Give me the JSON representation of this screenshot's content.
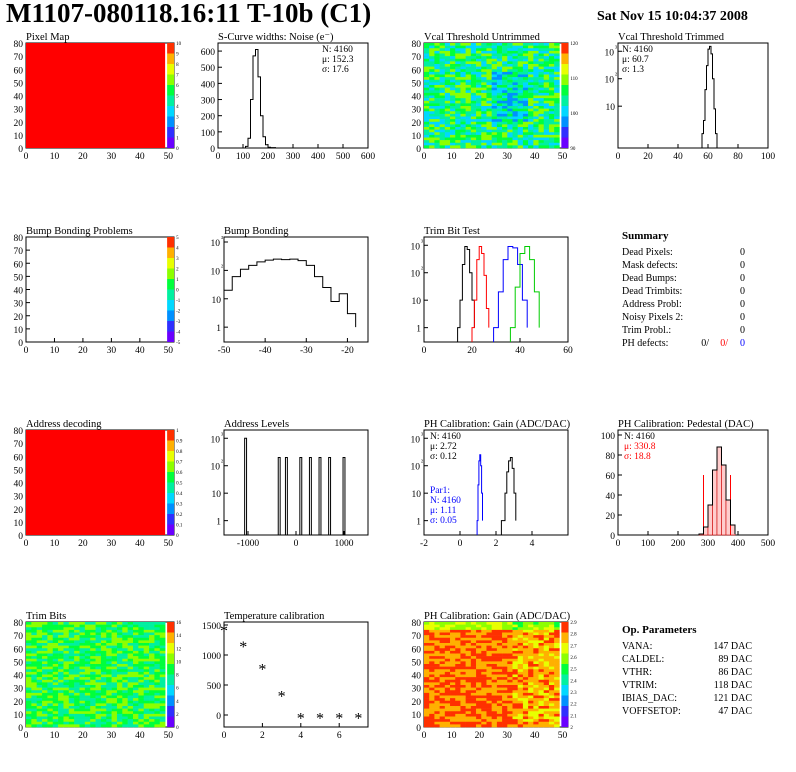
{
  "page": {
    "title": "M1107-080118.16:11 T-10b (C1)",
    "date": "Sat Nov 15 10:04:37 2008"
  },
  "colors": {
    "red": "#ff0000",
    "blue": "#0000ff",
    "green": "#00cc00",
    "black": "#000000",
    "palette": [
      "#6a00ff",
      "#2f2fff",
      "#0090ff",
      "#00d8ff",
      "#00f0a0",
      "#00ff3c",
      "#8cff00",
      "#e8ff00",
      "#ffb000",
      "#ff3000"
    ]
  },
  "summary": {
    "title": "Summary",
    "rows": [
      {
        "label": "Dead Pixels:",
        "value": "0"
      },
      {
        "label": "Mask defects:",
        "value": "0"
      },
      {
        "label": "Dead Bumps:",
        "value": "0"
      },
      {
        "label": "Dead Trimbits:",
        "value": "0"
      },
      {
        "label": "Address Probl:",
        "value": "0"
      },
      {
        "label": "Noisy Pixels 2:",
        "value": "0"
      },
      {
        "label": "Trim Probl.:",
        "value": "0"
      }
    ],
    "ph": {
      "label": "PH defects:",
      "v1": "0/",
      "v2": "0/",
      "v3": "0"
    }
  },
  "op_params": {
    "title": "Op. Parameters",
    "rows": [
      {
        "label": "VANA:",
        "value": "147 DAC"
      },
      {
        "label": "CALDEL:",
        "value": "89 DAC"
      },
      {
        "label": "VTHR:",
        "value": "86 DAC"
      },
      {
        "label": "VTRIM:",
        "value": "118 DAC"
      },
      {
        "label": "IBIAS_DAC:",
        "value": "121 DAC"
      },
      {
        "label": "VOFFSETOP:",
        "value": "47 DAC"
      }
    ]
  },
  "chart_data": [
    {
      "id": "pixel_map",
      "type": "heatmap",
      "title": "Pixel Map",
      "xlim": [
        0,
        52
      ],
      "ylim": [
        0,
        80
      ],
      "xticks": [
        "0",
        "10",
        "20",
        "30",
        "40",
        "50"
      ],
      "yticks": [
        "0",
        "10",
        "20",
        "30",
        "40",
        "50",
        "60",
        "70",
        "80"
      ],
      "fill": "uniform",
      "fill_color": "#ff0000",
      "zscale": [
        "0",
        "1",
        "2",
        "3",
        "4",
        "5",
        "6",
        "7",
        "8",
        "9",
        "10"
      ]
    },
    {
      "id": "scurve",
      "type": "line",
      "title": "S-Curve widths: Noise (e⁻)",
      "xlim": [
        0,
        600
      ],
      "ylim": [
        0,
        650
      ],
      "xticks": [
        "0",
        "100",
        "200",
        "300",
        "400",
        "500",
        "600"
      ],
      "yticks": [
        "0",
        "100",
        "200",
        "300",
        "400",
        "500",
        "600"
      ],
      "stats": [
        "N: 4160",
        "μ: 152.3",
        "σ: 17.6"
      ],
      "x": [
        100,
        110,
        120,
        130,
        140,
        150,
        160,
        170,
        180,
        190,
        200,
        210,
        230
      ],
      "y": [
        0,
        10,
        60,
        300,
        570,
        610,
        440,
        200,
        70,
        20,
        5,
        2,
        0
      ]
    },
    {
      "id": "vcal_untrimmed",
      "type": "heatmap",
      "title": "Vcal Threshold Untrimmed",
      "xlim": [
        0,
        52
      ],
      "ylim": [
        0,
        80
      ],
      "xticks": [
        "0",
        "10",
        "20",
        "30",
        "40",
        "50"
      ],
      "yticks": [
        "0",
        "10",
        "20",
        "30",
        "40",
        "50",
        "60",
        "70",
        "80"
      ],
      "fill": "noise",
      "zscale": [
        "90",
        "100",
        "110",
        "120"
      ]
    },
    {
      "id": "vcal_trimmed",
      "type": "line",
      "title": "Vcal Threshold Trimmed",
      "xlim": [
        0,
        100
      ],
      "ylim_log": [
        0.3,
        2000
      ],
      "log": true,
      "xticks": [
        "0",
        "20",
        "40",
        "60",
        "80",
        "100"
      ],
      "yticks": [
        "10",
        "10²",
        "10³"
      ],
      "stats": [
        "N: 4160",
        "μ: 60.7",
        "σ:  1.3"
      ],
      "x": [
        56,
        57,
        58,
        59,
        60,
        61,
        62,
        63,
        64,
        65,
        66
      ],
      "y": [
        1,
        3,
        40,
        300,
        1200,
        1500,
        800,
        100,
        8,
        1,
        0.3
      ]
    },
    {
      "id": "bump_problems",
      "type": "heatmap",
      "title": "Bump Bonding Problems",
      "xlim": [
        0,
        52
      ],
      "ylim": [
        0,
        80
      ],
      "xticks": [
        "0",
        "10",
        "20",
        "30",
        "40",
        "50"
      ],
      "yticks": [
        "0",
        "10",
        "20",
        "30",
        "40",
        "50",
        "60",
        "70",
        "80"
      ],
      "fill": "empty",
      "zscale": [
        "-5",
        "-4",
        "-3",
        "-2",
        "-1",
        "0",
        "1",
        "2",
        "3",
        "4",
        "5"
      ]
    },
    {
      "id": "bump_bonding",
      "type": "line",
      "title": "Bump Bonding",
      "xlim": [
        -50,
        -15
      ],
      "ylim_log": [
        0.3,
        1500
      ],
      "log": true,
      "xticks": [
        "-50",
        "-40",
        "-30",
        "-20"
      ],
      "yticks": [
        "1",
        "10",
        "10²",
        "10³"
      ],
      "x": [
        -50,
        -48,
        -46,
        -44,
        -42,
        -40,
        -38,
        -36,
        -34,
        -32,
        -30,
        -28,
        -26,
        -24,
        -22,
        -20,
        -18
      ],
      "y": [
        20,
        60,
        110,
        150,
        200,
        230,
        250,
        240,
        250,
        220,
        150,
        60,
        25,
        8,
        15,
        3,
        1
      ]
    },
    {
      "id": "trim_bit",
      "type": "line",
      "title": "Trim Bit Test",
      "xlim": [
        0,
        60
      ],
      "ylim_log": [
        0.3,
        2000
      ],
      "log": true,
      "xticks": [
        "0",
        "20",
        "40",
        "60"
      ],
      "yticks": [
        "1",
        "10",
        "10²",
        "10³"
      ],
      "series": [
        {
          "color": "black",
          "x": [
            14,
            15,
            16,
            17,
            18,
            19,
            20,
            21
          ],
          "y": [
            1,
            10,
            200,
            900,
            700,
            100,
            10,
            1
          ]
        },
        {
          "color": "red",
          "x": [
            20,
            21,
            22,
            23,
            24,
            25,
            26,
            27
          ],
          "y": [
            1,
            10,
            300,
            900,
            500,
            80,
            5,
            1
          ]
        },
        {
          "color": "blue",
          "x": [
            29,
            31,
            33,
            35,
            37,
            39,
            41,
            43
          ],
          "y": [
            1,
            20,
            300,
            900,
            800,
            200,
            10,
            1
          ]
        },
        {
          "color": "green",
          "x": [
            36,
            38,
            40,
            42,
            44,
            46,
            48
          ],
          "y": [
            1,
            30,
            500,
            900,
            300,
            20,
            1
          ]
        }
      ]
    },
    {
      "id": "address_decoding",
      "type": "heatmap",
      "title": "Address decoding",
      "xlim": [
        0,
        52
      ],
      "ylim": [
        0,
        80
      ],
      "xticks": [
        "0",
        "10",
        "20",
        "30",
        "40",
        "50"
      ],
      "yticks": [
        "0",
        "10",
        "20",
        "30",
        "40",
        "50",
        "60",
        "70",
        "80"
      ],
      "fill": "uniform",
      "fill_color": "#ff0000",
      "zscale": [
        "0",
        "0.1",
        "0.2",
        "0.3",
        "0.4",
        "0.5",
        "0.6",
        "0.7",
        "0.8",
        "0.9",
        "1"
      ]
    },
    {
      "id": "address_levels",
      "type": "line",
      "title": "Address Levels",
      "xlim": [
        -1500,
        1500
      ],
      "ylim_log": [
        0.3,
        2000
      ],
      "log": true,
      "xticks": [
        "-1000",
        "0",
        "1000"
      ],
      "yticks": [
        "1",
        "10",
        "10²",
        "10³"
      ],
      "peaks": [
        [
          -1050,
          1000
        ],
        [
          -350,
          200
        ],
        [
          -200,
          200
        ],
        [
          100,
          200
        ],
        [
          300,
          200
        ],
        [
          500,
          200
        ],
        [
          700,
          200
        ],
        [
          1000,
          200
        ]
      ]
    },
    {
      "id": "ph_gain",
      "type": "line",
      "title": "PH Calibration: Gain (ADC/DAC)",
      "xlim": [
        -2,
        6
      ],
      "ylim_log": [
        0.3,
        2000
      ],
      "log": true,
      "xticks": [
        "-2",
        "0",
        "2",
        "4"
      ],
      "yticks": [
        "1",
        "10",
        "10²",
        "10³"
      ],
      "stats": [
        "N: 4160",
        "μ: 2.72",
        "σ: 0.12"
      ],
      "stats2": [
        "Par1:",
        "N: 4160",
        "μ: 1.11",
        "σ: 0.05"
      ],
      "series": [
        {
          "color": "blue",
          "x": [
            0.95,
            1.0,
            1.05,
            1.1,
            1.15,
            1.2,
            1.25
          ],
          "y": [
            1,
            20,
            150,
            250,
            100,
            10,
            1
          ]
        },
        {
          "color": "black",
          "x": [
            2.3,
            2.5,
            2.6,
            2.7,
            2.8,
            2.9,
            3.0,
            3.1
          ],
          "y": [
            1,
            10,
            60,
            150,
            200,
            80,
            10,
            1
          ]
        }
      ]
    },
    {
      "id": "ph_pedestal",
      "type": "line",
      "title": "PH Calibration: Pedestal (DAC)",
      "xlim": [
        0,
        500
      ],
      "ylim": [
        0,
        105
      ],
      "xticks": [
        "0",
        "100",
        "200",
        "300",
        "400",
        "500"
      ],
      "yticks": [
        "0",
        "20",
        "40",
        "60",
        "80",
        "100"
      ],
      "stats": [
        "N: 4160",
        "μ: 330.8",
        "σ: 18.8"
      ],
      "x": [
        270,
        285,
        300,
        315,
        330,
        345,
        360,
        375,
        390
      ],
      "y": [
        1,
        8,
        30,
        65,
        88,
        70,
        35,
        10,
        1
      ]
    },
    {
      "id": "trim_bits",
      "type": "heatmap",
      "title": "Trim Bits",
      "xlim": [
        0,
        52
      ],
      "ylim": [
        0,
        80
      ],
      "xticks": [
        "0",
        "10",
        "20",
        "30",
        "40",
        "50"
      ],
      "yticks": [
        "0",
        "10",
        "20",
        "30",
        "40",
        "50",
        "60",
        "70",
        "80"
      ],
      "fill": "noise-green",
      "zscale": [
        "0",
        "2",
        "4",
        "6",
        "8",
        "10",
        "12",
        "14",
        "16"
      ]
    },
    {
      "id": "temperature",
      "type": "scatter",
      "title": "Temperature calibration",
      "xlim": [
        0,
        7.5
      ],
      "ylim": [
        -200,
        1550
      ],
      "xticks": [
        "0",
        "2",
        "4",
        "6"
      ],
      "yticks": [
        "0",
        "500",
        "1000",
        "1500"
      ],
      "x": [
        0,
        1,
        2,
        3,
        4,
        5,
        6,
        7
      ],
      "y": [
        1400,
        1130,
        760,
        310,
        -60,
        -60,
        -60,
        -60
      ]
    },
    {
      "id": "ph_gain_map",
      "type": "heatmap",
      "title": "PH Calibration: Gain (ADC/DAC)",
      "xlim": [
        0,
        52
      ],
      "ylim": [
        0,
        80
      ],
      "xticks": [
        "0",
        "10",
        "20",
        "30",
        "40",
        "50"
      ],
      "yticks": [
        "0",
        "10",
        "20",
        "30",
        "40",
        "50",
        "60",
        "70",
        "80"
      ],
      "fill": "noise-warm",
      "zscale": [
        "2",
        "2.1",
        "2.2",
        "2.3",
        "2.4",
        "2.5",
        "2.6",
        "2.7",
        "2.8",
        "2.9"
      ]
    }
  ]
}
